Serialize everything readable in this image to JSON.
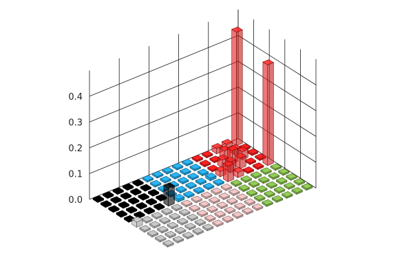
{
  "chart_data": {
    "type": "bar3d",
    "title": "",
    "xlabel": "",
    "ylabel": "",
    "zlabel": "",
    "zlim": [
      0,
      0.45
    ],
    "z_ticks": [
      "0.0",
      "0.1",
      "0.2",
      "0.3",
      "0.4"
    ],
    "z_tick_values": [
      0,
      0.1,
      0.2,
      0.3,
      0.4
    ],
    "grid": true,
    "legend": "none",
    "blocks": [
      {
        "color": "#000000",
        "i_range": [
          0,
          4
        ],
        "j_range": [
          0,
          4
        ]
      },
      {
        "color": "#29b6f6",
        "i_range": [
          0,
          4
        ],
        "j_range": [
          5,
          9
        ]
      },
      {
        "color": "#ff2020",
        "i_range": [
          0,
          4
        ],
        "j_range": [
          10,
          14
        ]
      },
      {
        "color": "#c8c8c8",
        "i_range": [
          5,
          9
        ],
        "j_range": [
          0,
          4
        ]
      },
      {
        "color": "#f4c6c6",
        "i_range": [
          5,
          9
        ],
        "j_range": [
          5,
          9
        ]
      },
      {
        "color": "#92cd55",
        "i_range": [
          5,
          9
        ],
        "j_range": [
          10,
          14
        ]
      }
    ],
    "bars": [
      {
        "i": 4,
        "j": 4,
        "value": 0.07
      },
      {
        "i": 4,
        "j": 10,
        "value": 0.06
      },
      {
        "i": 3,
        "j": 10,
        "value": 0.02
      },
      {
        "i": 3,
        "j": 11,
        "value": 0.04
      },
      {
        "i": 4,
        "j": 11,
        "value": 0.02
      },
      {
        "i": 2,
        "j": 11,
        "value": 0.03
      },
      {
        "i": 2,
        "j": 12,
        "value": 0.05
      },
      {
        "i": 1,
        "j": 12,
        "value": 0.03
      },
      {
        "i": 1,
        "j": 13,
        "value": 0.02
      },
      {
        "i": 0,
        "j": 12,
        "value": 0.02
      },
      {
        "i": 0,
        "j": 13,
        "value": 0.02
      },
      {
        "i": 3,
        "j": 12,
        "value": 0.04
      },
      {
        "i": 2,
        "j": 13,
        "value": 0.03
      },
      {
        "i": 0,
        "j": 14,
        "value": 0.44
      },
      {
        "i": 4,
        "j": 14,
        "value": 0.39
      },
      {
        "i": 4,
        "j": 5,
        "value": 0.01
      },
      {
        "i": 3,
        "j": 9,
        "value": 0.01
      },
      {
        "i": 5,
        "j": 0,
        "value": 0.02
      }
    ]
  }
}
